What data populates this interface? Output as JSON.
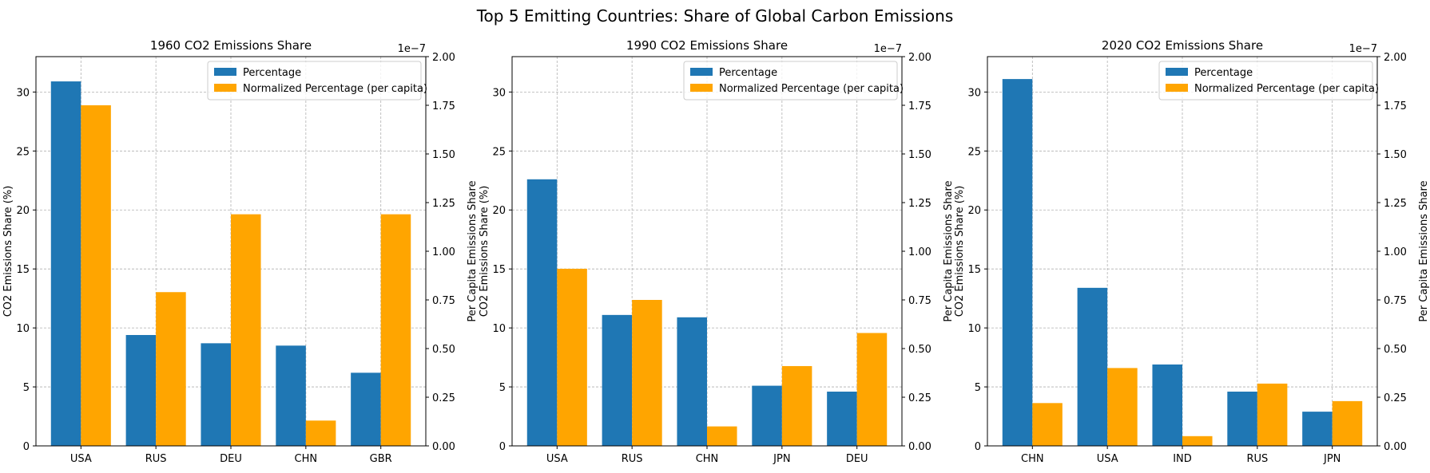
{
  "figure": {
    "title": "Top 5 Emitting Countries: Share of Global Carbon Emissions"
  },
  "colors": {
    "percentage": "#1f77b4",
    "per_capita": "#ffa500",
    "grid": "#b0b0b0"
  },
  "chart_data": [
    {
      "type": "bar",
      "title": "1960 CO2 Emissions Share",
      "categories": [
        "USA",
        "RUS",
        "DEU",
        "CHN",
        "GBR"
      ],
      "series": [
        {
          "name": "Percentage",
          "axis": "left",
          "values": [
            30.9,
            9.4,
            8.7,
            8.5,
            6.2
          ]
        },
        {
          "name": "Normalized Percentage (per capita)",
          "axis": "right",
          "values": [
            1.75e-07,
            7.9e-08,
            1.19e-07,
            1.3e-08,
            1.19e-07
          ]
        }
      ],
      "ylabel": "CO2 Emissions Share (%)",
      "ylabel_right": "Per Capita Emissions Share",
      "ylim": [
        0,
        33
      ],
      "yticks": [
        0,
        5,
        10,
        15,
        20,
        25,
        30
      ],
      "ylim_right": [
        0,
        2e-07
      ],
      "yticks_right": [
        "0.00",
        "0.25",
        "0.50",
        "0.75",
        "1.00",
        "1.25",
        "1.50",
        "1.75",
        "2.00"
      ],
      "right_offset_text": "1e−7",
      "legend": "upper right",
      "grid": true
    },
    {
      "type": "bar",
      "title": "1990 CO2 Emissions Share",
      "categories": [
        "USA",
        "RUS",
        "CHN",
        "JPN",
        "DEU"
      ],
      "series": [
        {
          "name": "Percentage",
          "axis": "left",
          "values": [
            22.6,
            11.1,
            10.9,
            5.1,
            4.6
          ]
        },
        {
          "name": "Normalized Percentage (per capita)",
          "axis": "right",
          "values": [
            9.1e-08,
            7.5e-08,
            1e-08,
            4.1e-08,
            5.8e-08
          ]
        }
      ],
      "ylabel": "CO2 Emissions Share (%)",
      "ylabel_right": "Per Capita Emissions Share",
      "ylim": [
        0,
        33
      ],
      "yticks": [
        0,
        5,
        10,
        15,
        20,
        25,
        30
      ],
      "ylim_right": [
        0,
        2e-07
      ],
      "yticks_right": [
        "0.00",
        "0.25",
        "0.50",
        "0.75",
        "1.00",
        "1.25",
        "1.50",
        "1.75",
        "2.00"
      ],
      "right_offset_text": "1e−7",
      "legend": "upper right",
      "grid": true
    },
    {
      "type": "bar",
      "title": "2020 CO2 Emissions Share",
      "categories": [
        "CHN",
        "USA",
        "IND",
        "RUS",
        "JPN"
      ],
      "series": [
        {
          "name": "Percentage",
          "axis": "left",
          "values": [
            31.1,
            13.4,
            6.9,
            4.6,
            2.9
          ]
        },
        {
          "name": "Normalized Percentage (per capita)",
          "axis": "right",
          "values": [
            2.2e-08,
            4e-08,
            5e-09,
            3.2e-08,
            2.3e-08
          ]
        }
      ],
      "ylabel": "CO2 Emissions Share (%)",
      "ylabel_right": "Per Capita Emissions Share",
      "ylim": [
        0,
        33
      ],
      "yticks": [
        0,
        5,
        10,
        15,
        20,
        25,
        30
      ],
      "ylim_right": [
        0,
        2e-07
      ],
      "yticks_right": [
        "0.00",
        "0.25",
        "0.50",
        "0.75",
        "1.00",
        "1.25",
        "1.50",
        "1.75",
        "2.00"
      ],
      "right_offset_text": "1e−7",
      "legend": "upper right",
      "grid": true
    }
  ]
}
